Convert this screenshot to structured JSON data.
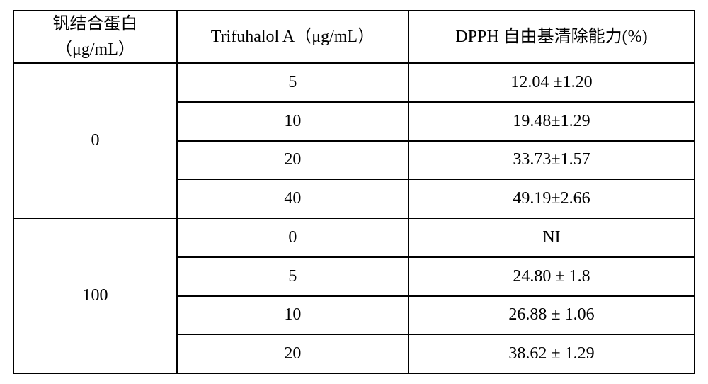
{
  "table": {
    "columns": [
      "钒结合蛋白\n（μg/mL）",
      "Trifuhalol A（μg/mL）",
      "DPPH 自由基清除能力(%)"
    ],
    "groups": [
      {
        "label": "0",
        "rows": [
          {
            "conc": "5",
            "dpph": "12.04 ±1.20"
          },
          {
            "conc": "10",
            "dpph": "19.48±1.29"
          },
          {
            "conc": "20",
            "dpph": "33.73±1.57"
          },
          {
            "conc": "40",
            "dpph": "49.19±2.66"
          }
        ]
      },
      {
        "label": "100",
        "rows": [
          {
            "conc": "0",
            "dpph": "NI"
          },
          {
            "conc": "5",
            "dpph": "24.80 ± 1.8"
          },
          {
            "conc": "10",
            "dpph": "26.88 ± 1.06"
          },
          {
            "conc": "20",
            "dpph": "38.62 ± 1.29"
          }
        ]
      }
    ],
    "border_color": "#000000",
    "background_color": "#ffffff",
    "font_size_pt": 18
  }
}
